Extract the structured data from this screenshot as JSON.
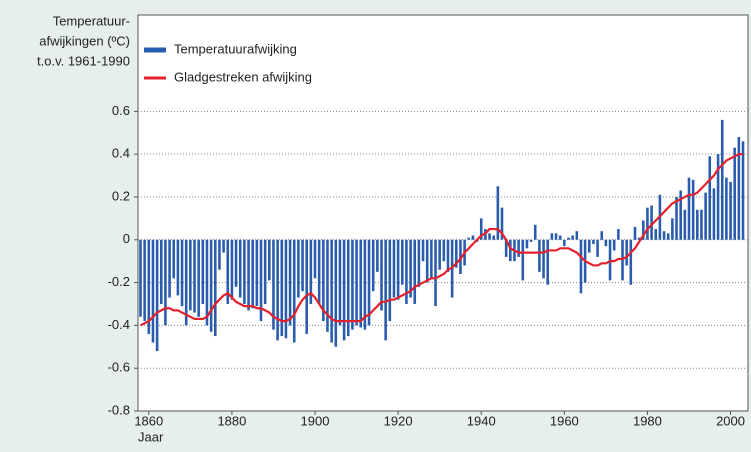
{
  "chart_data": {
    "type": "bar_line",
    "ylabel": [
      "Temperatuur-",
      "afwijkingen (ºC)",
      "t.o.v. 1961-1990"
    ],
    "xlabel": "Jaar",
    "x": [
      1858,
      1859,
      1860,
      1861,
      1862,
      1863,
      1864,
      1865,
      1866,
      1867,
      1868,
      1869,
      1870,
      1871,
      1872,
      1873,
      1874,
      1875,
      1876,
      1877,
      1878,
      1879,
      1880,
      1881,
      1882,
      1883,
      1884,
      1885,
      1886,
      1887,
      1888,
      1889,
      1890,
      1891,
      1892,
      1893,
      1894,
      1895,
      1896,
      1897,
      1898,
      1899,
      1900,
      1901,
      1902,
      1903,
      1904,
      1905,
      1906,
      1907,
      1908,
      1909,
      1910,
      1911,
      1912,
      1913,
      1914,
      1915,
      1916,
      1917,
      1918,
      1919,
      1920,
      1921,
      1922,
      1923,
      1924,
      1925,
      1926,
      1927,
      1928,
      1929,
      1930,
      1931,
      1932,
      1933,
      1934,
      1935,
      1936,
      1937,
      1938,
      1939,
      1940,
      1941,
      1942,
      1943,
      1944,
      1945,
      1946,
      1947,
      1948,
      1949,
      1950,
      1951,
      1952,
      1953,
      1954,
      1955,
      1956,
      1957,
      1958,
      1959,
      1960,
      1961,
      1962,
      1963,
      1964,
      1965,
      1966,
      1967,
      1968,
      1969,
      1970,
      1971,
      1972,
      1973,
      1974,
      1975,
      1976,
      1977,
      1978,
      1979,
      1980,
      1981,
      1982,
      1983,
      1984,
      1985,
      1986,
      1987,
      1988,
      1989,
      1990,
      1991,
      1992,
      1993,
      1994,
      1995,
      1996,
      1997,
      1998,
      1999,
      2000,
      2001,
      2002,
      2003
    ],
    "series": [
      {
        "name": "Temperatuurafwijking",
        "kind": "bar",
        "color": "#2a5cae",
        "values": [
          -0.36,
          -0.38,
          -0.44,
          -0.48,
          -0.52,
          -0.3,
          -0.4,
          -0.27,
          -0.18,
          -0.26,
          -0.31,
          -0.4,
          -0.33,
          -0.34,
          -0.36,
          -0.3,
          -0.4,
          -0.43,
          -0.45,
          -0.14,
          -0.06,
          -0.3,
          -0.28,
          -0.22,
          -0.27,
          -0.3,
          -0.33,
          -0.32,
          -0.31,
          -0.38,
          -0.3,
          -0.19,
          -0.42,
          -0.47,
          -0.45,
          -0.46,
          -0.4,
          -0.48,
          -0.27,
          -0.24,
          -0.44,
          -0.3,
          -0.18,
          -0.3,
          -0.38,
          -0.43,
          -0.48,
          -0.5,
          -0.4,
          -0.47,
          -0.45,
          -0.42,
          -0.4,
          -0.41,
          -0.42,
          -0.4,
          -0.24,
          -0.15,
          -0.33,
          -0.47,
          -0.38,
          -0.27,
          -0.28,
          -0.21,
          -0.3,
          -0.27,
          -0.3,
          -0.22,
          -0.1,
          -0.2,
          -0.18,
          -0.31,
          -0.14,
          -0.1,
          -0.15,
          -0.27,
          -0.13,
          -0.16,
          -0.12,
          0.01,
          0.02,
          -0.01,
          0.1,
          0.05,
          0.03,
          0.02,
          0.25,
          0.15,
          -0.08,
          -0.1,
          -0.1,
          -0.08,
          -0.19,
          -0.04,
          -0.01,
          0.07,
          -0.15,
          -0.18,
          -0.21,
          0.03,
          0.03,
          0.02,
          -0.03,
          0.01,
          0.02,
          0.04,
          -0.25,
          -0.2,
          -0.06,
          -0.02,
          -0.08,
          0.04,
          -0.03,
          -0.19,
          -0.05,
          0.05,
          -0.19,
          -0.12,
          -0.21,
          0.06,
          0.01,
          0.09,
          0.15,
          0.16,
          0.05,
          0.21,
          0.04,
          0.03,
          0.1,
          0.2,
          0.23,
          0.14,
          0.29,
          0.28,
          0.14,
          0.14,
          0.22,
          0.39,
          0.24,
          0.4,
          0.56,
          0.29,
          0.27,
          0.43,
          0.48,
          0.46
        ]
      },
      {
        "name": "Gladgestreken afwijking",
        "kind": "line",
        "color": "#e3202b",
        "values": [
          -0.4,
          -0.39,
          -0.38,
          -0.36,
          -0.34,
          -0.33,
          -0.32,
          -0.32,
          -0.33,
          -0.33,
          -0.34,
          -0.35,
          -0.36,
          -0.37,
          -0.37,
          -0.37,
          -0.36,
          -0.33,
          -0.3,
          -0.28,
          -0.26,
          -0.25,
          -0.27,
          -0.29,
          -0.3,
          -0.31,
          -0.31,
          -0.31,
          -0.32,
          -0.32,
          -0.33,
          -0.34,
          -0.36,
          -0.37,
          -0.38,
          -0.38,
          -0.37,
          -0.35,
          -0.31,
          -0.28,
          -0.26,
          -0.25,
          -0.27,
          -0.3,
          -0.33,
          -0.35,
          -0.37,
          -0.38,
          -0.38,
          -0.38,
          -0.38,
          -0.38,
          -0.38,
          -0.38,
          -0.36,
          -0.35,
          -0.33,
          -0.31,
          -0.29,
          -0.29,
          -0.28,
          -0.28,
          -0.27,
          -0.26,
          -0.25,
          -0.24,
          -0.22,
          -0.21,
          -0.2,
          -0.19,
          -0.18,
          -0.18,
          -0.17,
          -0.16,
          -0.14,
          -0.13,
          -0.11,
          -0.09,
          -0.06,
          -0.04,
          -0.02,
          0.0,
          0.02,
          0.03,
          0.05,
          0.05,
          0.05,
          0.03,
          0.0,
          -0.04,
          -0.05,
          -0.06,
          -0.06,
          -0.06,
          -0.06,
          -0.06,
          -0.06,
          -0.06,
          -0.05,
          -0.05,
          -0.05,
          -0.04,
          -0.04,
          -0.04,
          -0.05,
          -0.06,
          -0.08,
          -0.1,
          -0.11,
          -0.12,
          -0.12,
          -0.11,
          -0.11,
          -0.1,
          -0.1,
          -0.09,
          -0.09,
          -0.08,
          -0.06,
          -0.04,
          -0.01,
          0.02,
          0.05,
          0.07,
          0.09,
          0.11,
          0.13,
          0.15,
          0.17,
          0.18,
          0.19,
          0.2,
          0.21,
          0.21,
          0.22,
          0.24,
          0.26,
          0.28,
          0.3,
          0.33,
          0.35,
          0.37,
          0.38,
          0.39,
          0.4,
          0.4
        ]
      }
    ],
    "xlim": [
      1857.4,
      2004.2
    ],
    "xticks": [
      1860,
      1880,
      1900,
      1920,
      1940,
      1960,
      1980,
      2000
    ],
    "ylim": [
      -0.8,
      1.05
    ],
    "yticks": [
      -0.8,
      -0.6,
      -0.4,
      -0.2,
      0,
      0.2,
      0.4,
      0.6
    ],
    "grid": true,
    "legend": "top-left"
  }
}
